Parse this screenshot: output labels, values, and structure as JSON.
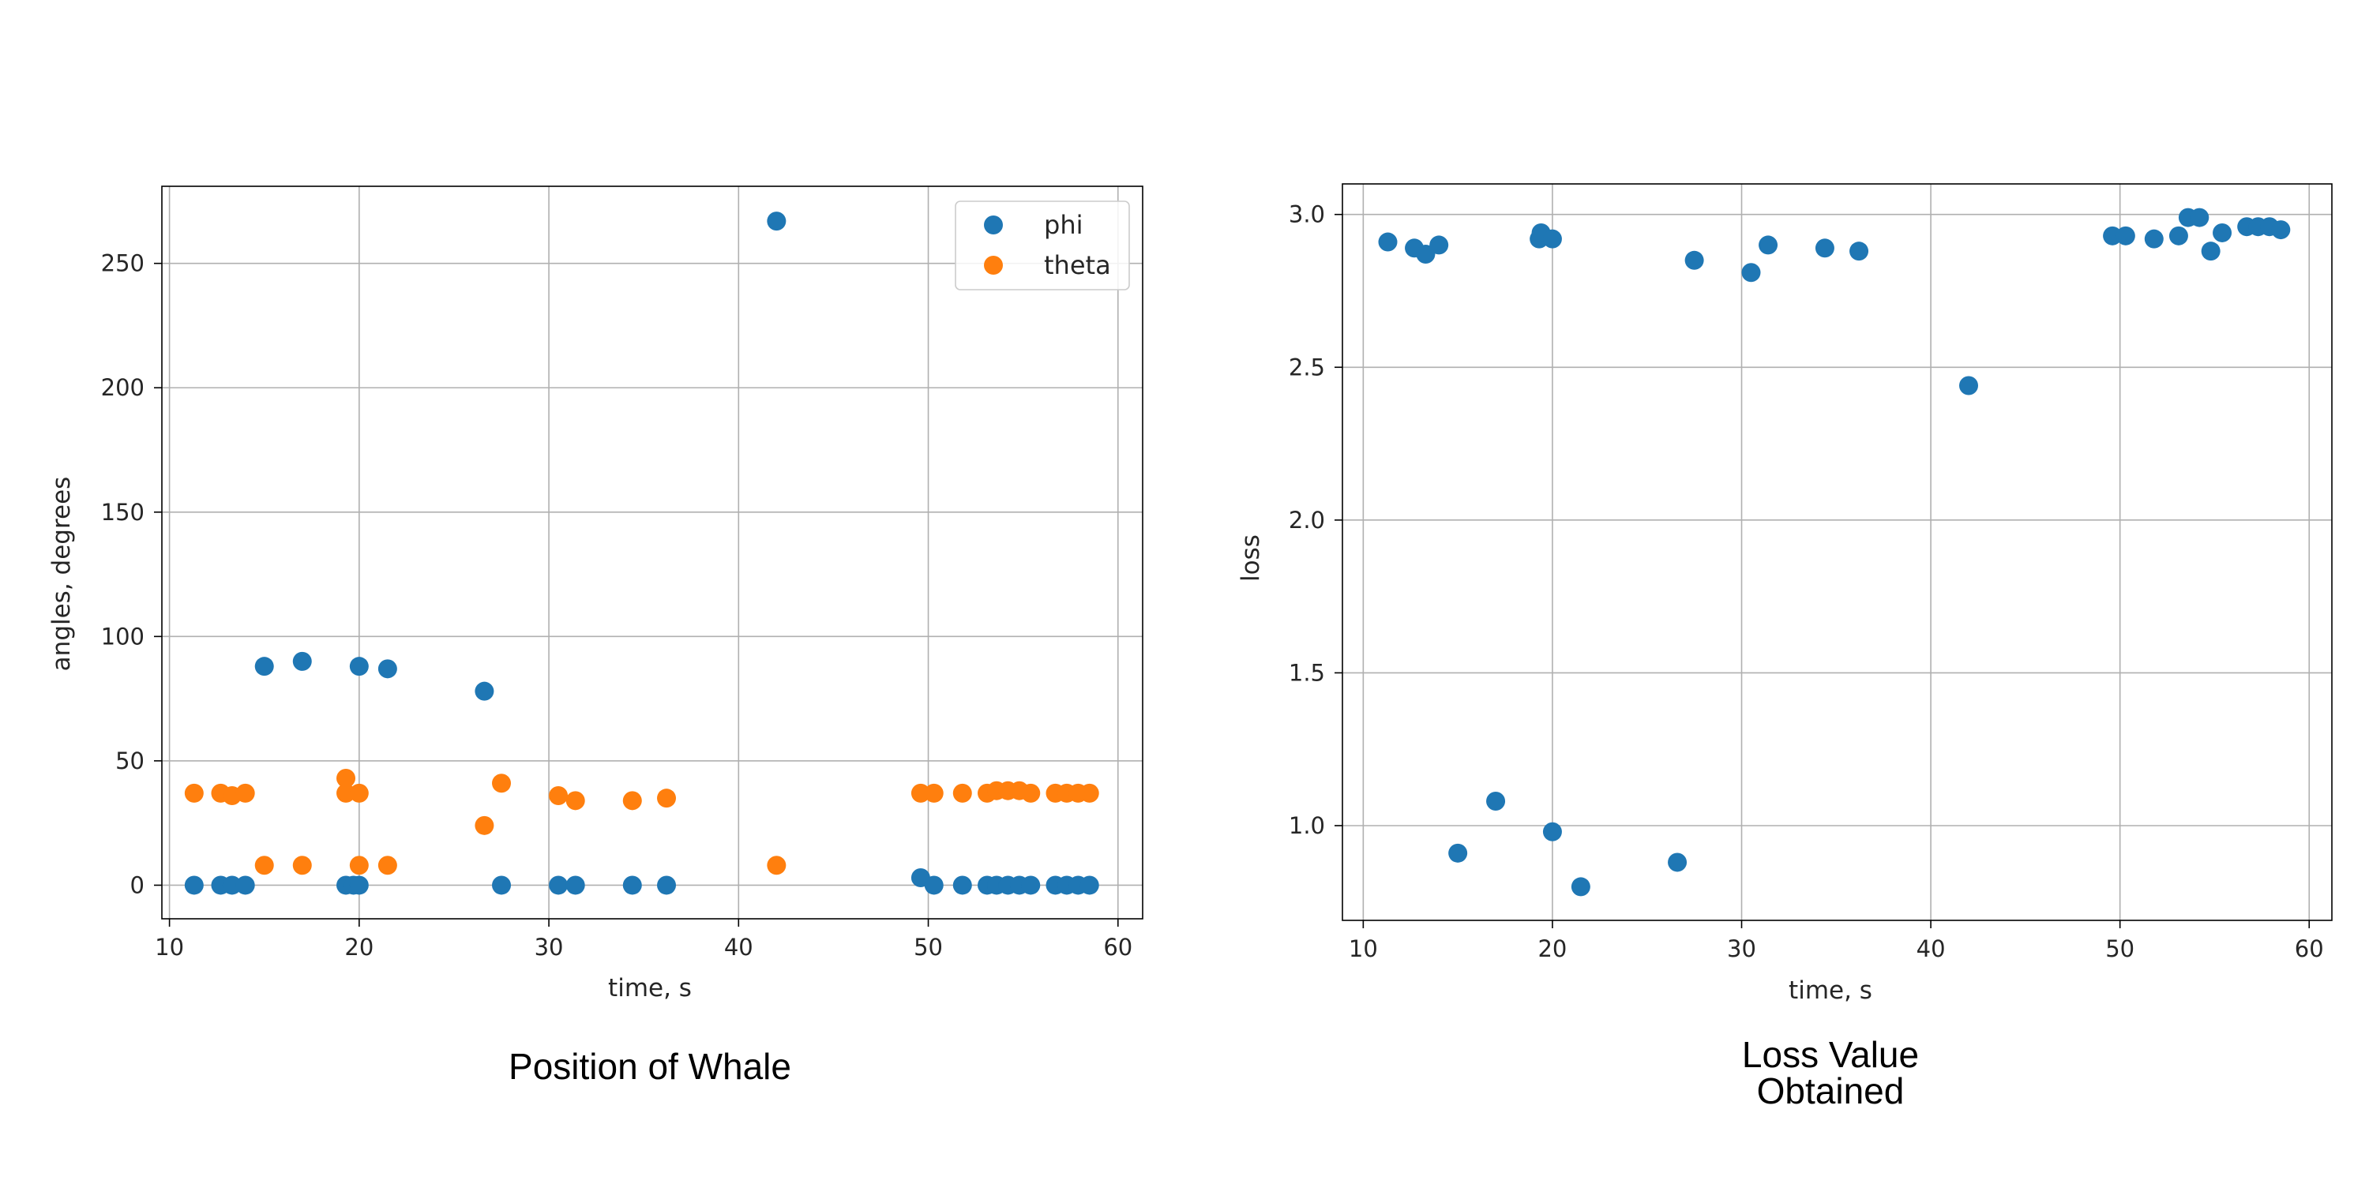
{
  "colors": {
    "phi": "#1f77b4",
    "theta": "#ff7f0e",
    "loss": "#1f77b4"
  },
  "chart_data": [
    {
      "type": "scatter",
      "caption": "Position of Whale",
      "xlabel": "time, s",
      "ylabel": "angles, degrees",
      "xlim": [
        9.6,
        61.3
      ],
      "ylim": [
        -13.5,
        281
      ],
      "xticks": [
        10,
        20,
        30,
        40,
        50,
        60
      ],
      "yticks": [
        0,
        50,
        100,
        150,
        200,
        250
      ],
      "grid": true,
      "legend_position": "top-right",
      "series": [
        {
          "name": "phi",
          "x": [
            11.3,
            12.7,
            13.3,
            14.0,
            15.0,
            17.0,
            19.3,
            19.7,
            20.0,
            20.0,
            21.5,
            26.6,
            27.5,
            30.5,
            31.4,
            34.4,
            36.2,
            42.0,
            49.6,
            50.3,
            51.8,
            53.1,
            53.6,
            54.2,
            54.8,
            55.4,
            56.7,
            57.3,
            57.9,
            58.5
          ],
          "y": [
            0,
            0,
            0,
            0,
            88,
            90,
            0,
            0,
            88,
            0,
            87,
            78,
            0,
            0,
            0,
            0,
            0,
            267,
            3,
            0,
            0,
            0,
            0,
            0,
            0,
            0,
            0,
            0,
            0,
            0
          ]
        },
        {
          "name": "theta",
          "x": [
            11.3,
            12.7,
            13.3,
            14.0,
            15.0,
            17.0,
            19.3,
            19.3,
            20.0,
            20.0,
            21.5,
            26.6,
            27.5,
            30.5,
            31.4,
            34.4,
            36.2,
            42.0,
            49.6,
            50.3,
            51.8,
            53.1,
            53.6,
            54.2,
            54.8,
            55.4,
            56.7,
            57.3,
            57.9,
            58.5
          ],
          "y": [
            37,
            37,
            36,
            37,
            8,
            8,
            43,
            37,
            37,
            8,
            8,
            24,
            41,
            36,
            34,
            34,
            35,
            8,
            37,
            37,
            37,
            37,
            38,
            38,
            38,
            37,
            37,
            37,
            37,
            37
          ]
        }
      ]
    },
    {
      "type": "scatter",
      "caption_lines": [
        "Loss Value",
        "Obtained"
      ],
      "xlabel": "time, s",
      "ylabel": "loss",
      "xlim": [
        8.9,
        61.2
      ],
      "ylim": [
        0.69,
        3.1
      ],
      "xticks": [
        10,
        20,
        30,
        40,
        50,
        60
      ],
      "yticks": [
        1.0,
        1.5,
        2.0,
        2.5,
        3.0
      ],
      "grid": true,
      "series": [
        {
          "name": "loss",
          "x": [
            11.3,
            12.7,
            13.3,
            14.0,
            15.0,
            17.0,
            19.3,
            19.4,
            20.0,
            20.0,
            21.5,
            26.6,
            27.5,
            30.5,
            31.4,
            34.4,
            36.2,
            42.0,
            49.6,
            50.3,
            51.8,
            53.1,
            53.6,
            54.2,
            54.8,
            55.4,
            56.7,
            57.3,
            57.9,
            58.5
          ],
          "y": [
            2.91,
            2.89,
            2.87,
            2.9,
            0.91,
            1.08,
            2.92,
            2.94,
            0.98,
            2.92,
            0.8,
            0.88,
            2.85,
            2.81,
            2.9,
            2.89,
            2.88,
            2.44,
            2.93,
            2.93,
            2.92,
            2.93,
            2.99,
            2.99,
            2.88,
            2.94,
            2.96,
            2.96,
            2.96,
            2.95
          ]
        }
      ]
    }
  ]
}
